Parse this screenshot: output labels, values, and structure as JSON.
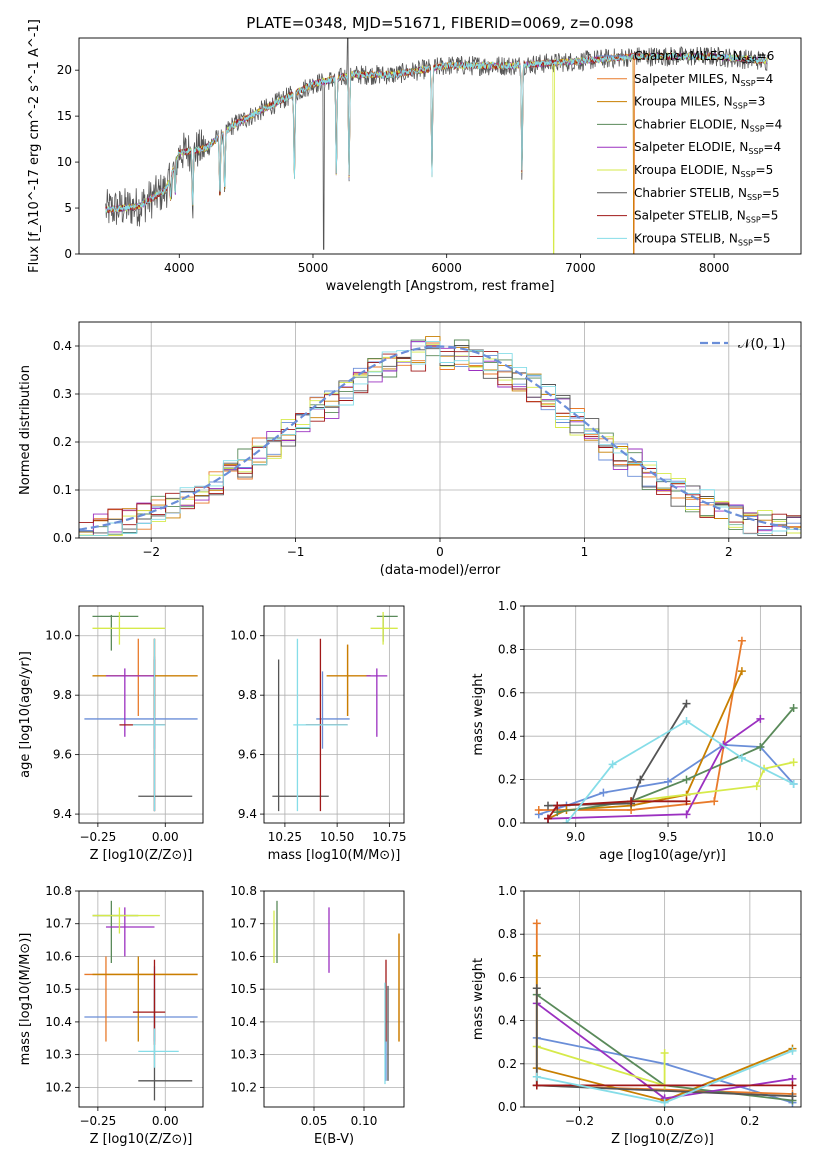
{
  "figure": {
    "title": "PLATE=0348, MJD=51671, FIBERID=0069, z=0.098"
  },
  "models": [
    {
      "name": "Chabrier MILES",
      "nssp": "6",
      "color": "#6a8ed8"
    },
    {
      "name": "Salpeter MILES",
      "nssp": "4",
      "color": "#e87a2a"
    },
    {
      "name": "Kroupa MILES",
      "nssp": "3",
      "color": "#c87f00"
    },
    {
      "name": "Chabrier ELODIE",
      "nssp": "4",
      "color": "#5a8a5a"
    },
    {
      "name": "Salpeter ELODIE",
      "nssp": "4",
      "color": "#9b30c0"
    },
    {
      "name": "Kroupa ELODIE",
      "nssp": "5",
      "color": "#d6ea4a"
    },
    {
      "name": "Chabrier STELIB",
      "nssp": "5",
      "color": "#555555"
    },
    {
      "name": "Salpeter STELIB",
      "nssp": "5",
      "color": "#a01818"
    },
    {
      "name": "Kroupa STELIB",
      "nssp": "5",
      "color": "#86dde8"
    }
  ],
  "chart_data": [
    {
      "id": "spectrum",
      "type": "line",
      "xlabel": "wavelength [Angstrom, rest frame]",
      "ylabel": "Flux [f_λ10^-17 erg cm^-2 s^-1 A^-1]",
      "xlim": [
        3250,
        8650
      ],
      "ylim": [
        0,
        23.5
      ],
      "xticks": [
        4000,
        5000,
        6000,
        7000,
        8000
      ],
      "yticks": [
        0,
        5,
        10,
        15,
        20
      ],
      "legend_position": "right",
      "grid": false,
      "continuum_knots": [
        [
          3450,
          4.8
        ],
        [
          3700,
          5.2
        ],
        [
          3900,
          7
        ],
        [
          4000,
          11
        ],
        [
          4200,
          11.5
        ],
        [
          4400,
          14
        ],
        [
          4600,
          15.5
        ],
        [
          5000,
          18.5
        ],
        [
          5300,
          19.5
        ],
        [
          5600,
          19.5
        ],
        [
          6000,
          20.5
        ],
        [
          6500,
          20.5
        ],
        [
          7000,
          21
        ],
        [
          7400,
          21.5
        ],
        [
          8000,
          21.5
        ],
        [
          8400,
          21
        ]
      ],
      "absorption_lines": [
        [
          3934,
          4.5
        ],
        [
          3969,
          4.5
        ],
        [
          4101,
          1.5
        ],
        [
          4304,
          1.5
        ],
        [
          4340,
          2
        ],
        [
          4861,
          2
        ],
        [
          5175,
          1.5
        ],
        [
          5270,
          1
        ],
        [
          5890,
          1
        ],
        [
          6563,
          1
        ]
      ],
      "spikes": [
        [
          5080,
          0.5
        ],
        [
          5260,
          24
        ],
        [
          6800,
          0
        ],
        [
          7400,
          0
        ]
      ]
    },
    {
      "id": "residuals",
      "type": "histogram",
      "xlabel": "(data-model)/error",
      "ylabel": "Normed distribution",
      "xlim": [
        -2.5,
        2.5
      ],
      "ylim": [
        0,
        0.45
      ],
      "xticks": [
        -2,
        -1,
        0,
        1,
        2
      ],
      "yticks": [
        0.0,
        0.1,
        0.2,
        0.3,
        0.4
      ],
      "grid": true,
      "legend": {
        "label": "𝒩(0, 1)",
        "position": "top-right"
      },
      "reference_curve": {
        "type": "gaussian",
        "mean": 0,
        "sigma": 1,
        "color": "#6a8ed8"
      }
    },
    {
      "id": "age-vs-Z",
      "type": "errorbar",
      "xlabel": "Z [log10(Z/Z⊙)]",
      "ylabel": "age  [log10(age/yr)]",
      "xlim": [
        -0.32,
        0.14
      ],
      "ylim": [
        9.37,
        10.1
      ],
      "xticks": [
        -0.25,
        0.0
      ],
      "yticks": [
        9.4,
        9.6,
        9.8,
        10.0
      ],
      "grid": true,
      "points": [
        {
          "x": -0.04,
          "x0": -0.3,
          "x1": 0.12,
          "y": 9.72,
          "y0": 9.62,
          "y1": 9.93
        },
        {
          "x": -0.1,
          "x0": -0.27,
          "x1": 0.12,
          "y": 9.865,
          "y0": 9.73,
          "y1": 9.99
        },
        {
          "x": -0.04,
          "x0": -0.27,
          "x1": 0.12,
          "y": 9.865,
          "y0": 9.73,
          "y1": 9.99
        },
        {
          "x": -0.2,
          "x0": -0.27,
          "x1": -0.1,
          "y": 10.065,
          "y0": 9.95,
          "y1": 10.07
        },
        {
          "x": -0.15,
          "x0": -0.22,
          "x1": -0.04,
          "y": 9.865,
          "y0": 9.66,
          "y1": 9.89
        },
        {
          "x": -0.17,
          "x0": -0.27,
          "x1": 0.0,
          "y": 10.025,
          "y0": 9.97,
          "y1": 10.08
        },
        {
          "x": -0.04,
          "x0": -0.1,
          "x1": 0.1,
          "y": 9.46,
          "y0": 9.41,
          "y1": 9.92
        },
        {
          "x": -0.04,
          "x0": -0.17,
          "x1": 0.0,
          "y": 9.7,
          "y0": 9.41,
          "y1": 9.99
        },
        {
          "x": -0.04,
          "x0": -0.12,
          "x1": 0.0,
          "y": 9.7,
          "y0": 9.41,
          "y1": 9.99
        }
      ]
    },
    {
      "id": "age-vs-mass",
      "type": "errorbar",
      "xlabel": "mass [log10(M/M⊙)]",
      "ylabel": "",
      "xlim": [
        10.15,
        10.82
      ],
      "ylim": [
        9.37,
        10.1
      ],
      "xticks": [
        10.25,
        10.5,
        10.75
      ],
      "yticks": [
        9.4,
        9.6,
        9.8,
        10.0
      ],
      "grid": true,
      "points": [
        {
          "x": 10.43,
          "x0": 10.4,
          "x1": 10.56,
          "y": 9.72,
          "y0": 9.62,
          "y1": 9.88
        },
        {
          "x": 10.55,
          "x0": 10.45,
          "x1": 10.66,
          "y": 9.865,
          "y0": 9.73,
          "y1": 9.97
        },
        {
          "x": 10.55,
          "x0": 10.45,
          "x1": 10.66,
          "y": 9.865,
          "y0": 9.73,
          "y1": 9.97
        },
        {
          "x": 10.72,
          "x0": 10.69,
          "x1": 10.79,
          "y": 10.065,
          "y0": 9.98,
          "y1": 10.07
        },
        {
          "x": 10.69,
          "x0": 10.64,
          "x1": 10.74,
          "y": 9.865,
          "y0": 9.66,
          "y1": 9.89
        },
        {
          "x": 10.72,
          "x0": 10.66,
          "x1": 10.79,
          "y": 10.025,
          "y0": 9.97,
          "y1": 10.08
        },
        {
          "x": 10.22,
          "x0": 10.19,
          "x1": 10.46,
          "y": 9.46,
          "y0": 9.41,
          "y1": 9.92
        },
        {
          "x": 10.42,
          "x0": 10.35,
          "x1": 10.55,
          "y": 9.7,
          "y0": 9.41,
          "y1": 9.99
        },
        {
          "x": 10.31,
          "x0": 10.29,
          "x1": 10.55,
          "y": 9.7,
          "y0": 9.41,
          "y1": 9.99
        }
      ]
    },
    {
      "id": "mass-weight-vs-age",
      "type": "line",
      "xlabel": "age  [log10(age/yr)]",
      "ylabel": "mass weight",
      "xlim": [
        8.72,
        10.22
      ],
      "ylim": [
        0,
        1
      ],
      "xticks": [
        9.0,
        9.5,
        10.0
      ],
      "yticks": [
        0.0,
        0.2,
        0.4,
        0.6,
        0.8,
        1.0
      ],
      "grid": true,
      "series": [
        {
          "points": [
            [
              8.8,
              0.04
            ],
            [
              8.95,
              0.08
            ],
            [
              9.15,
              0.14
            ],
            [
              9.5,
              0.19
            ],
            [
              9.8,
              0.36
            ],
            [
              10.0,
              0.35
            ],
            [
              10.18,
              0.18
            ]
          ]
        },
        {
          "points": [
            [
              8.8,
              0.06
            ],
            [
              9.3,
              0.06
            ],
            [
              9.75,
              0.1
            ],
            [
              9.9,
              0.84
            ]
          ]
        },
        {
          "points": [
            [
              8.85,
              0.02
            ],
            [
              8.95,
              0.06
            ],
            [
              9.3,
              0.08
            ],
            [
              9.6,
              0.13
            ],
            [
              9.9,
              0.7
            ]
          ]
        },
        {
          "points": [
            [
              8.9,
              0.05
            ],
            [
              9.3,
              0.1
            ],
            [
              9.6,
              0.2
            ],
            [
              10.0,
              0.35
            ],
            [
              10.18,
              0.53
            ]
          ]
        },
        {
          "points": [
            [
              8.85,
              0.02
            ],
            [
              9.6,
              0.04
            ],
            [
              9.8,
              0.36
            ],
            [
              10.0,
              0.48
            ]
          ]
        },
        {
          "points": [
            [
              9.3,
              0.1
            ],
            [
              9.98,
              0.17
            ],
            [
              10.02,
              0.25
            ],
            [
              10.18,
              0.28
            ]
          ]
        },
        {
          "points": [
            [
              8.85,
              0.08
            ],
            [
              9.3,
              0.09
            ],
            [
              9.35,
              0.2
            ],
            [
              9.6,
              0.55
            ]
          ]
        },
        {
          "points": [
            [
              8.85,
              0.02
            ],
            [
              8.9,
              0.08
            ],
            [
              9.3,
              0.1
            ],
            [
              9.6,
              0.1
            ]
          ]
        },
        {
          "points": [
            [
              8.95,
              0.0
            ],
            [
              9.2,
              0.27
            ],
            [
              9.6,
              0.47
            ],
            [
              9.9,
              0.3
            ],
            [
              10.18,
              0.18
            ]
          ]
        }
      ]
    },
    {
      "id": "mass-vs-Z",
      "type": "errorbar",
      "xlabel": "Z [log10(Z/Z⊙)]",
      "ylabel": "mass [log10(M/M⊙)]",
      "xlim": [
        -0.32,
        0.14
      ],
      "ylim": [
        10.14,
        10.8
      ],
      "xticks": [
        -0.25,
        0.0
      ],
      "yticks": [
        10.2,
        10.3,
        10.4,
        10.5,
        10.6,
        10.7,
        10.8
      ],
      "grid": true,
      "points": [
        {
          "x": -0.04,
          "x0": -0.3,
          "x1": 0.12,
          "y": 10.415,
          "y0": 10.34,
          "y1": 10.57
        },
        {
          "x": -0.22,
          "x0": -0.3,
          "x1": 0.12,
          "y": 10.545,
          "y0": 10.34,
          "y1": 10.6
        },
        {
          "x": -0.1,
          "x0": -0.27,
          "x1": 0.12,
          "y": 10.545,
          "y0": 10.34,
          "y1": 10.6
        },
        {
          "x": -0.2,
          "x0": -0.27,
          "x1": -0.1,
          "y": 10.725,
          "y0": 10.58,
          "y1": 10.77
        },
        {
          "x": -0.15,
          "x0": -0.22,
          "x1": -0.04,
          "y": 10.69,
          "y0": 10.6,
          "y1": 10.75
        },
        {
          "x": -0.17,
          "x0": -0.27,
          "x1": -0.02,
          "y": 10.725,
          "y0": 10.67,
          "y1": 10.75
        },
        {
          "x": -0.04,
          "x0": -0.1,
          "x1": 0.1,
          "y": 10.22,
          "y0": 10.16,
          "y1": 10.5
        },
        {
          "x": -0.04,
          "x0": -0.12,
          "x1": 0.0,
          "y": 10.43,
          "y0": 10.33,
          "y1": 10.59
        },
        {
          "x": -0.04,
          "x0": -0.1,
          "x1": 0.05,
          "y": 10.31,
          "y0": 10.26,
          "y1": 10.38
        }
      ]
    },
    {
      "id": "mass-vs-EBV",
      "type": "errorbar",
      "xlabel": "E(B-V)",
      "ylabel": "",
      "xlim": [
        0.0,
        0.14
      ],
      "ylim": [
        10.14,
        10.8
      ],
      "xticks": [
        0.05,
        0.1
      ],
      "yticks": [
        10.2,
        10.3,
        10.4,
        10.5,
        10.6,
        10.7,
        10.8
      ],
      "grid": true,
      "points": [
        {
          "x": 0.122,
          "x0": 0.122,
          "x1": 0.122,
          "y": 10.34,
          "y0": 10.22,
          "y1": 10.51
        },
        {
          "x": 0.135,
          "x0": 0.135,
          "x1": 0.135,
          "y": 10.5,
          "y0": 10.34,
          "y1": 10.67
        },
        {
          "x": 0.135,
          "x0": 0.135,
          "x1": 0.135,
          "y": 10.5,
          "y0": 10.34,
          "y1": 10.67
        },
        {
          "x": 0.013,
          "x0": 0.013,
          "x1": 0.013,
          "y": 10.67,
          "y0": 10.58,
          "y1": 10.77
        },
        {
          "x": 0.065,
          "x0": 0.065,
          "x1": 0.065,
          "y": 10.65,
          "y0": 10.55,
          "y1": 10.75
        },
        {
          "x": 0.01,
          "x0": 0.01,
          "x1": 0.01,
          "y": 10.67,
          "y0": 10.58,
          "y1": 10.74
        },
        {
          "x": 0.124,
          "x0": 0.124,
          "x1": 0.124,
          "y": 10.37,
          "y0": 10.22,
          "y1": 10.51
        },
        {
          "x": 0.122,
          "x0": 0.122,
          "x1": 0.122,
          "y": 10.48,
          "y0": 10.34,
          "y1": 10.59
        },
        {
          "x": 0.121,
          "x0": 0.121,
          "x1": 0.121,
          "y": 10.36,
          "y0": 10.21,
          "y1": 10.52
        }
      ]
    },
    {
      "id": "mass-weight-vs-Z",
      "type": "line",
      "xlabel": "Z [log10(Z/Z⊙)]",
      "ylabel": "mass weight",
      "xlim": [
        -0.33,
        0.32
      ],
      "ylim": [
        0,
        1
      ],
      "xticks": [
        -0.2,
        0.0,
        0.2
      ],
      "yticks": [
        0.0,
        0.2,
        0.4,
        0.6,
        0.8,
        1.0
      ],
      "grid": true,
      "series": [
        {
          "points": [
            [
              -0.3,
              0.32
            ],
            [
              0.0,
              0.2
            ],
            [
              0.3,
              0.02
            ]
          ]
        },
        {
          "points": [
            [
              -0.3,
              0.85
            ],
            [
              -0.3,
              0.1
            ],
            [
              0.3,
              0.06
            ]
          ]
        },
        {
          "points": [
            [
              -0.3,
              0.7
            ],
            [
              -0.3,
              0.18
            ],
            [
              0.0,
              0.03
            ],
            [
              0.3,
              0.27
            ]
          ]
        },
        {
          "points": [
            [
              -0.3,
              0.52
            ],
            [
              0.0,
              0.1
            ],
            [
              0.3,
              0.03
            ]
          ]
        },
        {
          "points": [
            [
              -0.3,
              0.48
            ],
            [
              0.0,
              0.04
            ],
            [
              0.3,
              0.13
            ]
          ]
        },
        {
          "points": [
            [
              -0.3,
              0.28
            ],
            [
              0.0,
              0.1
            ],
            [
              0.0,
              0.25
            ]
          ]
        },
        {
          "points": [
            [
              -0.3,
              0.55
            ],
            [
              -0.3,
              0.1
            ],
            [
              0.3,
              0.05
            ]
          ]
        },
        {
          "points": [
            [
              -0.3,
              0.1
            ],
            [
              0.3,
              0.1
            ]
          ]
        },
        {
          "points": [
            [
              -0.3,
              0.14
            ],
            [
              0.0,
              0.02
            ],
            [
              0.3,
              0.26
            ]
          ]
        }
      ]
    }
  ]
}
